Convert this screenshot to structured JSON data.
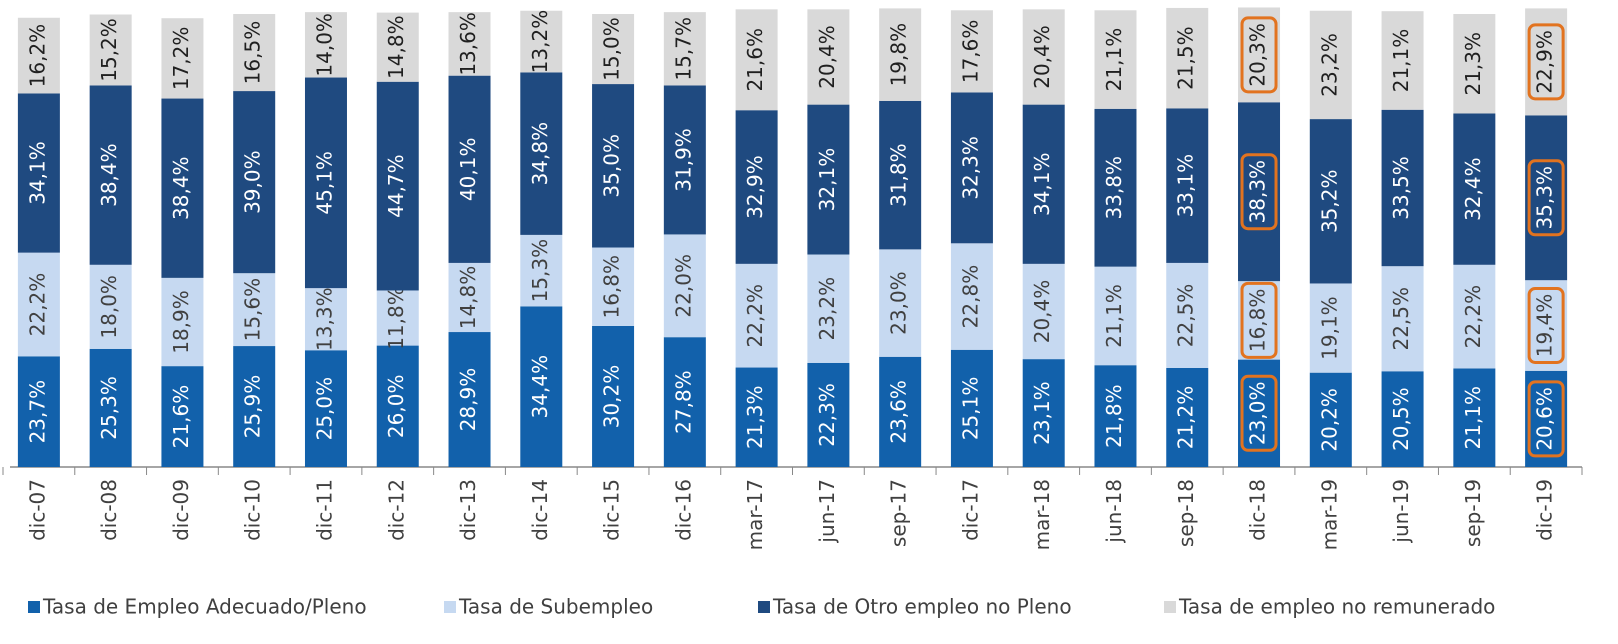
{
  "chart_data": {
    "type": "stacked_bar",
    "categories": [
      "dic-07",
      "dic-08",
      "dic-09",
      "dic-10",
      "dic-11",
      "dic-12",
      "dic-13",
      "dic-14",
      "dic-15",
      "dic-16",
      "mar-17",
      "jun-17",
      "sep-17",
      "dic-17",
      "mar-18",
      "jun-18",
      "sep-18",
      "dic-18",
      "mar-19",
      "jun-19",
      "sep-19",
      "dic-19"
    ],
    "series": [
      {
        "name": "Tasa de Empleo Adecuado/Pleno",
        "color": "#1261ab",
        "label_color": "#ffffff",
        "values": [
          23.7,
          25.3,
          21.6,
          25.9,
          25.0,
          26.0,
          28.9,
          34.4,
          30.2,
          27.8,
          21.3,
          22.3,
          23.6,
          25.1,
          23.1,
          21.8,
          21.2,
          23.0,
          20.2,
          20.5,
          21.1,
          20.6
        ],
        "value_labels": [
          "23,7%",
          "25,3%",
          "21,6%",
          "25,9%",
          "25,0%",
          "26,0%",
          "28,9%",
          "34,4%",
          "30,2%",
          "27,8%",
          "21,3%",
          "22,3%",
          "23,6%",
          "25,1%",
          "23,1%",
          "21,8%",
          "21,2%",
          "23,0%",
          "20,2%",
          "20,5%",
          "21,1%",
          "20,6%"
        ]
      },
      {
        "name": "Tasa de Subempleo",
        "color": "#c6d9f1",
        "label_color": "#404040",
        "values": [
          22.2,
          18.0,
          18.9,
          15.6,
          13.3,
          11.8,
          14.8,
          15.3,
          16.8,
          22.0,
          22.2,
          23.2,
          23.0,
          22.8,
          20.4,
          21.1,
          22.5,
          16.8,
          19.1,
          22.5,
          22.2,
          19.4
        ],
        "value_labels": [
          "22,2%",
          "18,0%",
          "18,9%",
          "15,6%",
          "13,3%",
          "11,8%",
          "14,8%",
          "15,3%",
          "16,8%",
          "22,0%",
          "22,2%",
          "23,2%",
          "23,0%",
          "22,8%",
          "20,4%",
          "21,1%",
          "22,5%",
          "16,8%",
          "19,1%",
          "22,5%",
          "22,2%",
          "19,4%"
        ]
      },
      {
        "name": "Tasa de Otro empleo no Pleno",
        "color": "#1f4a80",
        "label_color": "#ffffff",
        "values": [
          34.1,
          38.4,
          38.4,
          39.0,
          45.1,
          44.7,
          40.1,
          34.8,
          35.0,
          31.9,
          32.9,
          32.1,
          31.8,
          32.3,
          34.1,
          33.8,
          33.1,
          38.3,
          35.2,
          33.5,
          32.4,
          35.3
        ],
        "value_labels": [
          "34,1%",
          "38,4%",
          "38,4%",
          "39,0%",
          "45,1%",
          "44,7%",
          "40,1%",
          "34,8%",
          "35,0%",
          "31,9%",
          "32,9%",
          "32,1%",
          "31,8%",
          "32,3%",
          "34,1%",
          "33,8%",
          "33,1%",
          "38,3%",
          "35,2%",
          "33,5%",
          "32,4%",
          "35,3%"
        ]
      },
      {
        "name": "Tasa de empleo no remunerado",
        "color": "#d9d9d9",
        "label_color": "#202020",
        "values": [
          16.2,
          15.2,
          17.2,
          16.5,
          14.0,
          14.8,
          13.6,
          13.2,
          15.0,
          15.7,
          21.6,
          20.4,
          19.8,
          17.6,
          20.4,
          21.1,
          21.5,
          20.3,
          23.2,
          21.1,
          21.3,
          22.9
        ],
        "value_labels": [
          "16,2%",
          "15,2%",
          "17,2%",
          "16,5%",
          "14,0%",
          "14,8%",
          "13,6%",
          "13,2%",
          "15,0%",
          "15,7%",
          "21,6%",
          "20,4%",
          "19,8%",
          "17,6%",
          "20,4%",
          "21,1%",
          "21,5%",
          "20,3%",
          "23,2%",
          "21,1%",
          "21,3%",
          "22,9%"
        ]
      }
    ],
    "ylim": [
      0,
      100
    ],
    "highlight": [
      "dic-18",
      "dic-19"
    ],
    "highlight_color": "#e2731f",
    "legend": "bottom"
  }
}
